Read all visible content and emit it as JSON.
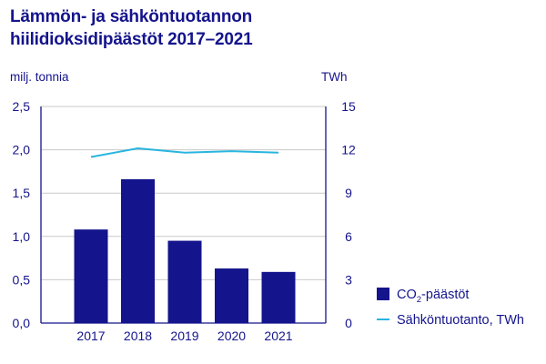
{
  "title": {
    "line1": "Lämmön- ja sähköntuotannon",
    "line2": "hiilidioksidipäästöt 2017–2021"
  },
  "colors": {
    "text": "#14148c",
    "bar": "#14148c",
    "line": "#29b5e0",
    "axis": "#14148c",
    "grid": "#c9c9c9"
  },
  "chart_data": {
    "type": "bar",
    "title": "Lämmön- ja sähköntuotannon hiilidioksidipäästöt 2017–2021",
    "categories": [
      "2017",
      "2018",
      "2019",
      "2020",
      "2021"
    ],
    "y_left": {
      "unit_label": "milj. tonnia",
      "ticks": [
        "2,5",
        "2,0",
        "1,5",
        "1,0",
        "0,5",
        "0,0"
      ],
      "tick_values": [
        2.5,
        2.0,
        1.5,
        1.0,
        0.5,
        0.0
      ],
      "ylim": [
        0,
        2.5
      ]
    },
    "y_right": {
      "unit_label": "TWh",
      "ticks": [
        "15",
        "12",
        "9",
        "6",
        "3",
        "0"
      ],
      "tick_values": [
        15,
        12,
        9,
        6,
        3,
        0
      ],
      "ylim": [
        0,
        15
      ]
    },
    "series": [
      {
        "name_prefix": "CO",
        "name_sub": "2",
        "name_suffix": "-päästöt",
        "type": "bar",
        "axis": "left",
        "values": [
          1.08,
          1.66,
          0.95,
          0.63,
          0.59
        ]
      },
      {
        "name": "Sähköntuotanto, TWh",
        "type": "line",
        "axis": "right",
        "values": [
          11.5,
          12.1,
          11.8,
          11.9,
          11.8
        ]
      }
    ],
    "grid": true,
    "legend_position": "bottom-right"
  }
}
